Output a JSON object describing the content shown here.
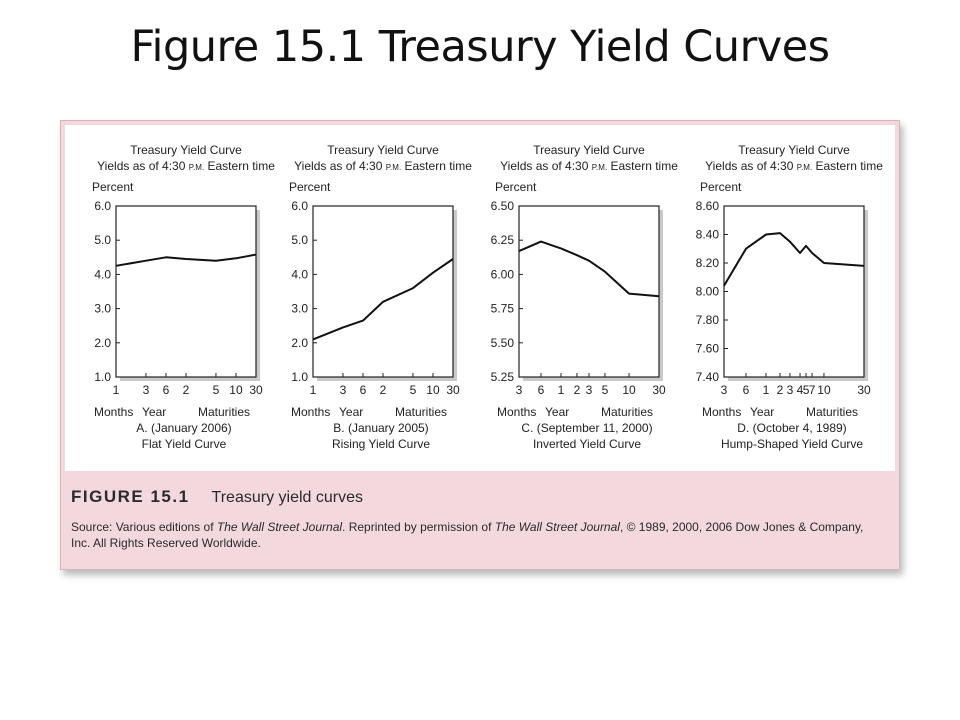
{
  "slide": {
    "title": "Figure 15.1 Treasury Yield Curves"
  },
  "caption": {
    "label": "FIGURE 15.1",
    "title": "Treasury yield curves",
    "source_prefix": "Source: Various editions of ",
    "source_pub1": "The Wall Street Journal",
    "source_mid": ". Reprinted by permission of ",
    "source_pub2": "The Wall Street Journal",
    "source_suffix": ", © 1989, 2000, 2006 Dow Jones & Company, Inc. All Rights Reserved Worldwide."
  },
  "chart_data": [
    {
      "type": "line",
      "title": "Treasury Yield Curve",
      "subtitle_prefix": "Yields as of 4:30",
      "subtitle_pm": "P.M.",
      "subtitle_suffix": "Eastern time",
      "ylabel": "Percent",
      "yticks": [
        "6.0",
        "5.0",
        "4.0",
        "3.0",
        "2.0",
        "1.0"
      ],
      "ylim": [
        1.0,
        6.0
      ],
      "xticks": [
        "1",
        "3",
        "6",
        "2",
        "5",
        "10",
        "30"
      ],
      "xgroups": [
        "Months",
        "Year",
        "Maturities"
      ],
      "date_label": "A. (January 2006)",
      "curve_label": "Flat Yield Curve",
      "x_order": [
        0,
        1,
        2,
        3,
        4,
        5,
        6
      ],
      "values": [
        4.25,
        4.4,
        4.5,
        4.45,
        4.4,
        4.47,
        4.58
      ],
      "color": "#111111"
    },
    {
      "type": "line",
      "title": "Treasury Yield Curve",
      "subtitle_prefix": "Yields as of 4:30",
      "subtitle_pm": "P.M.",
      "subtitle_suffix": "Eastern time",
      "ylabel": "Percent",
      "yticks": [
        "6.0",
        "5.0",
        "4.0",
        "3.0",
        "2.0",
        "1.0"
      ],
      "ylim": [
        1.0,
        6.0
      ],
      "xticks": [
        "1",
        "3",
        "6",
        "2",
        "5",
        "10",
        "30"
      ],
      "xgroups": [
        "Months",
        "Year",
        "Maturities"
      ],
      "date_label": "B. (January 2005)",
      "curve_label": "Rising Yield Curve",
      "x_order": [
        0,
        1,
        2,
        3,
        4,
        5,
        6
      ],
      "values": [
        2.1,
        2.45,
        2.65,
        3.2,
        3.6,
        4.05,
        4.45
      ],
      "color": "#111111"
    },
    {
      "type": "line",
      "title": "Treasury Yield Curve",
      "subtitle_prefix": "Yields as of 4:30",
      "subtitle_pm": "P.M.",
      "subtitle_suffix": "Eastern time",
      "ylabel": "Percent",
      "yticks": [
        "6.50",
        "6.25",
        "6.00",
        "5.75",
        "5.50",
        "5.25"
      ],
      "ylim": [
        5.25,
        6.5
      ],
      "xticks": [
        "3",
        "6",
        "1",
        "2",
        "3",
        "5",
        "10",
        "30"
      ],
      "xgroups": [
        "Months",
        "Year",
        "Maturities"
      ],
      "date_label": "C. (September 11, 2000)",
      "curve_label": "Inverted Yield Curve",
      "x_order": [
        0,
        1,
        2,
        3,
        4,
        5,
        6,
        7
      ],
      "values": [
        6.17,
        6.24,
        6.19,
        6.14,
        6.1,
        6.02,
        5.86,
        5.84
      ],
      "color": "#111111"
    },
    {
      "type": "line",
      "title": "Treasury Yield Curve",
      "subtitle_prefix": "Yields as of 4:30",
      "subtitle_pm": "P.M.",
      "subtitle_suffix": "Eastern time",
      "ylabel": "Percent",
      "yticks": [
        "8.60",
        "8.40",
        "8.20",
        "8.00",
        "7.80",
        "7.60",
        "7.40"
      ],
      "ylim": [
        7.4,
        8.6
      ],
      "xticks": [
        "3",
        "6",
        "1",
        "2",
        "3",
        "4",
        "5",
        "7",
        "10",
        "30"
      ],
      "xgroups": [
        "Months",
        "Year",
        "Maturities"
      ],
      "date_label": "D. (October 4, 1989)",
      "curve_label": "Hump-Shaped Yield Curve",
      "x_order": [
        0,
        1,
        2,
        3,
        4,
        5,
        6,
        7,
        8,
        9
      ],
      "values": [
        8.04,
        8.3,
        8.4,
        8.41,
        8.35,
        8.27,
        8.32,
        8.27,
        8.2,
        8.18
      ],
      "color": "#111111"
    }
  ]
}
